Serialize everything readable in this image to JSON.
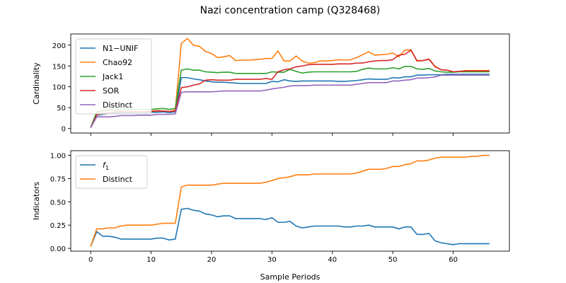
{
  "chart_data": {
    "title": "Nazi concentration camp (Q328468)",
    "xlabel": "Sample Periods",
    "xlim": [
      -3.3,
      69.3
    ],
    "xticks": [
      0,
      10,
      20,
      30,
      40,
      50,
      60
    ],
    "colors": {
      "blue": "#1f77b4",
      "orange": "#ff7f0e",
      "green": "#2ca02c",
      "red": "#d62728",
      "purple": "#9467bd"
    },
    "panels": [
      {
        "type": "line",
        "ylabel": "Cardinality",
        "ylim": [
          -10.8,
          226.8
        ],
        "yticks": [
          0,
          50,
          100,
          150,
          200
        ],
        "legend_loc": "upper left",
        "series": [
          {
            "name": "N1−UNIF",
            "color": "#1f77b4",
            "values": [
              2,
              32,
              34,
              36,
              37,
              38,
              38,
              38,
              38,
              38,
              39,
              39,
              40,
              38,
              40,
              122,
              122,
              119,
              117,
              114,
              112,
              111,
              111,
              110,
              109,
              108,
              108,
              108,
              108,
              108,
              113,
              112,
              117,
              114,
              113,
              114,
              114,
              114,
              114,
              114,
              114,
              113,
              113,
              114,
              115,
              117,
              119,
              118,
              118,
              118,
              122,
              121,
              124,
              124,
              128,
              128,
              129,
              129,
              129,
              130,
              130,
              130,
              130,
              130,
              130,
              130,
              130
            ]
          },
          {
            "name": "Chao92",
            "color": "#ff7f0e",
            "values": [
              2,
              36,
              45,
              47,
              42,
              40,
              40,
              40,
              40,
              40,
              42,
              43,
              42,
              41,
              44,
              204,
              216,
              200,
              197,
              185,
              180,
              170,
              172,
              175,
              163,
              164,
              164,
              165,
              166,
              168,
              168,
              186,
              162,
              162,
              174,
              162,
              157,
              158,
              162,
              162,
              163,
              165,
              164,
              165,
              170,
              177,
              184,
              176,
              177,
              178,
              181,
              172,
              188,
              189,
              163,
              163,
              167,
              149,
              141,
              140,
              136,
              137,
              139,
              139,
              139,
              139,
              139
            ]
          },
          {
            "name": "Jack1",
            "color": "#2ca02c",
            "values": [
              2,
              40,
              42,
              44,
              44,
              44,
              45,
              45,
              45,
              46,
              46,
              47,
              48,
              46,
              48,
              140,
              143,
              140,
              140,
              136,
              135,
              134,
              135,
              135,
              132,
              132,
              132,
              132,
              132,
              132,
              136,
              135,
              135,
              142,
              137,
              133,
              135,
              136,
              136,
              136,
              136,
              136,
              136,
              136,
              137,
              142,
              145,
              143,
              143,
              143,
              146,
              143,
              149,
              149,
              143,
              142,
              144,
              138,
              136,
              135,
              135,
              136,
              136,
              136,
              136,
              136,
              136
            ]
          },
          {
            "name": "SOR",
            "color": "#d62728",
            "values": [
              2,
              33,
              36,
              38,
              39,
              40,
              40,
              40,
              40,
              40,
              41,
              42,
              42,
              41,
              42,
              98,
              100,
              104,
              107,
              116,
              117,
              116,
              116,
              116,
              118,
              118,
              118,
              118,
              118,
              120,
              118,
              136,
              141,
              143,
              148,
              150,
              153,
              154,
              154,
              154,
              154,
              155,
              155,
              155,
              157,
              157,
              160,
              162,
              163,
              163,
              165,
              176,
              178,
              188,
              162,
              163,
              166,
              148,
              141,
              140,
              136,
              137,
              138,
              138,
              138,
              138,
              138
            ]
          },
          {
            "name": "Distinct",
            "color": "#9467bd",
            "values": [
              2,
              28,
              28,
              28,
              29,
              31,
              31,
              31,
              32,
              32,
              32,
              34,
              34,
              34,
              35,
              87,
              88,
              88,
              88,
              88,
              88,
              89,
              90,
              90,
              90,
              90,
              90,
              90,
              90,
              92,
              95,
              97,
              99,
              102,
              103,
              103,
              103,
              104,
              104,
              104,
              104,
              104,
              104,
              104,
              106,
              108,
              110,
              110,
              110,
              110,
              114,
              114,
              116,
              117,
              121,
              121,
              122,
              124,
              128,
              128,
              128,
              128,
              128,
              128,
              128,
              128,
              128
            ]
          }
        ]
      },
      {
        "type": "line",
        "ylabel": "Indicators",
        "ylim": [
          -0.03,
          1.05
        ],
        "yticks": [
          "0.00",
          "0.25",
          "0.50",
          "0.75",
          "1.00"
        ],
        "yticks_values": [
          0,
          0.25,
          0.5,
          0.75,
          1.0
        ],
        "legend_loc": "upper left",
        "series": [
          {
            "name": "f1",
            "color": "#1f77b4",
            "values": [
              0.02,
              0.18,
              0.13,
              0.13,
              0.12,
              0.1,
              0.1,
              0.1,
              0.1,
              0.1,
              0.1,
              0.11,
              0.11,
              0.09,
              0.1,
              0.42,
              0.43,
              0.41,
              0.4,
              0.37,
              0.36,
              0.34,
              0.35,
              0.35,
              0.32,
              0.32,
              0.32,
              0.32,
              0.32,
              0.31,
              0.33,
              0.28,
              0.28,
              0.29,
              0.24,
              0.22,
              0.23,
              0.24,
              0.24,
              0.24,
              0.24,
              0.24,
              0.23,
              0.23,
              0.24,
              0.24,
              0.25,
              0.23,
              0.23,
              0.23,
              0.23,
              0.21,
              0.23,
              0.23,
              0.15,
              0.15,
              0.16,
              0.08,
              0.06,
              0.05,
              0.04,
              0.05,
              0.05,
              0.05,
              0.05,
              0.05,
              0.05
            ]
          },
          {
            "name": "Distinct",
            "color": "#ff7f0e",
            "values": [
              0.02,
              0.21,
              0.21,
              0.22,
              0.22,
              0.24,
              0.25,
              0.25,
              0.25,
              0.25,
              0.25,
              0.26,
              0.27,
              0.27,
              0.27,
              0.66,
              0.68,
              0.68,
              0.68,
              0.68,
              0.68,
              0.69,
              0.7,
              0.7,
              0.7,
              0.7,
              0.7,
              0.7,
              0.7,
              0.71,
              0.73,
              0.75,
              0.76,
              0.77,
              0.79,
              0.79,
              0.79,
              0.8,
              0.8,
              0.8,
              0.8,
              0.8,
              0.8,
              0.8,
              0.81,
              0.83,
              0.85,
              0.85,
              0.85,
              0.86,
              0.88,
              0.88,
              0.9,
              0.91,
              0.94,
              0.94,
              0.95,
              0.97,
              0.98,
              0.98,
              0.98,
              0.98,
              0.98,
              0.99,
              0.99,
              1.0,
              1.0
            ]
          }
        ]
      }
    ]
  }
}
